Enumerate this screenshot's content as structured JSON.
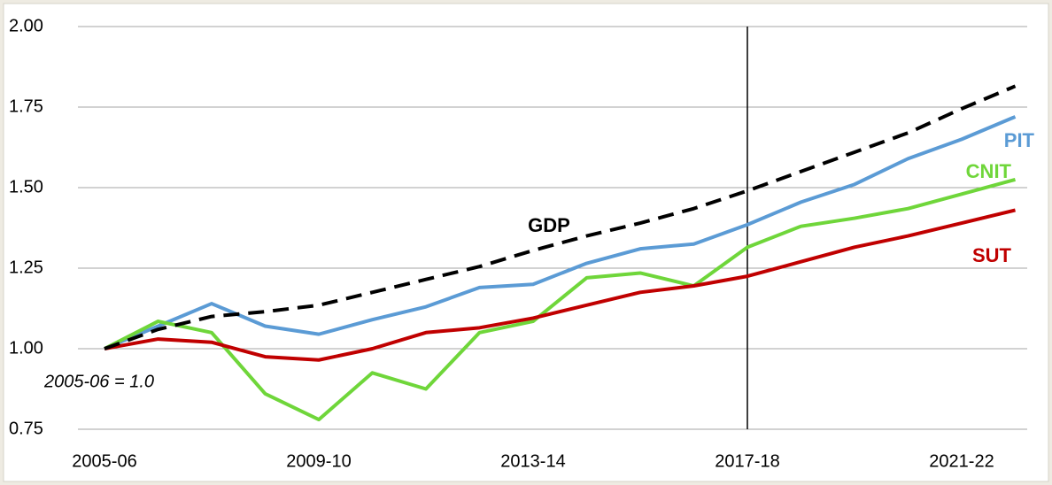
{
  "chart_data": {
    "type": "line",
    "categories": [
      "2005-06",
      null,
      null,
      null,
      "2009-10",
      null,
      null,
      null,
      "2013-14",
      null,
      null,
      null,
      "2017-18",
      null,
      null,
      null,
      "2021-22",
      null
    ],
    "series": [
      {
        "name": "PIT",
        "color": "#5b9bd5",
        "values": [
          1.0,
          1.07,
          1.14,
          1.07,
          1.045,
          1.09,
          1.13,
          1.19,
          1.2,
          1.265,
          1.31,
          1.325,
          1.385,
          1.455,
          1.51,
          1.59,
          1.65,
          1.72
        ]
      },
      {
        "name": "CNIT",
        "color": "#6fd63a",
        "values": [
          1.0,
          1.085,
          1.05,
          0.86,
          0.78,
          0.925,
          0.875,
          1.05,
          1.085,
          1.22,
          1.235,
          1.195,
          1.315,
          1.38,
          1.405,
          1.435,
          1.48,
          1.525
        ]
      },
      {
        "name": "SUT",
        "color": "#c00000",
        "values": [
          1.0,
          1.03,
          1.02,
          0.975,
          0.965,
          1.0,
          1.05,
          1.065,
          1.095,
          1.135,
          1.175,
          1.195,
          1.225,
          1.27,
          1.315,
          1.35,
          1.39,
          1.43
        ]
      },
      {
        "name": "GDP",
        "color": "#000000",
        "dashed": true,
        "values": [
          1.0,
          1.06,
          1.1,
          1.115,
          1.135,
          1.175,
          1.215,
          1.255,
          1.305,
          1.35,
          1.39,
          1.435,
          1.49,
          1.55,
          1.61,
          1.67,
          1.745,
          1.815
        ]
      }
    ],
    "ylim": [
      0.75,
      2.0
    ],
    "yticks": [
      {
        "value": 0.75,
        "label": "0.75"
      },
      {
        "value": 1.0,
        "label": "1.00"
      },
      {
        "value": 1.25,
        "label": "1.25"
      },
      {
        "value": 1.5,
        "label": "1.50"
      },
      {
        "value": 1.75,
        "label": "1.75"
      },
      {
        "value": 2.0,
        "label": "2.00"
      }
    ],
    "grid": true,
    "vline_category": "2017-18",
    "annotation": "2005-06 = 1.0"
  }
}
